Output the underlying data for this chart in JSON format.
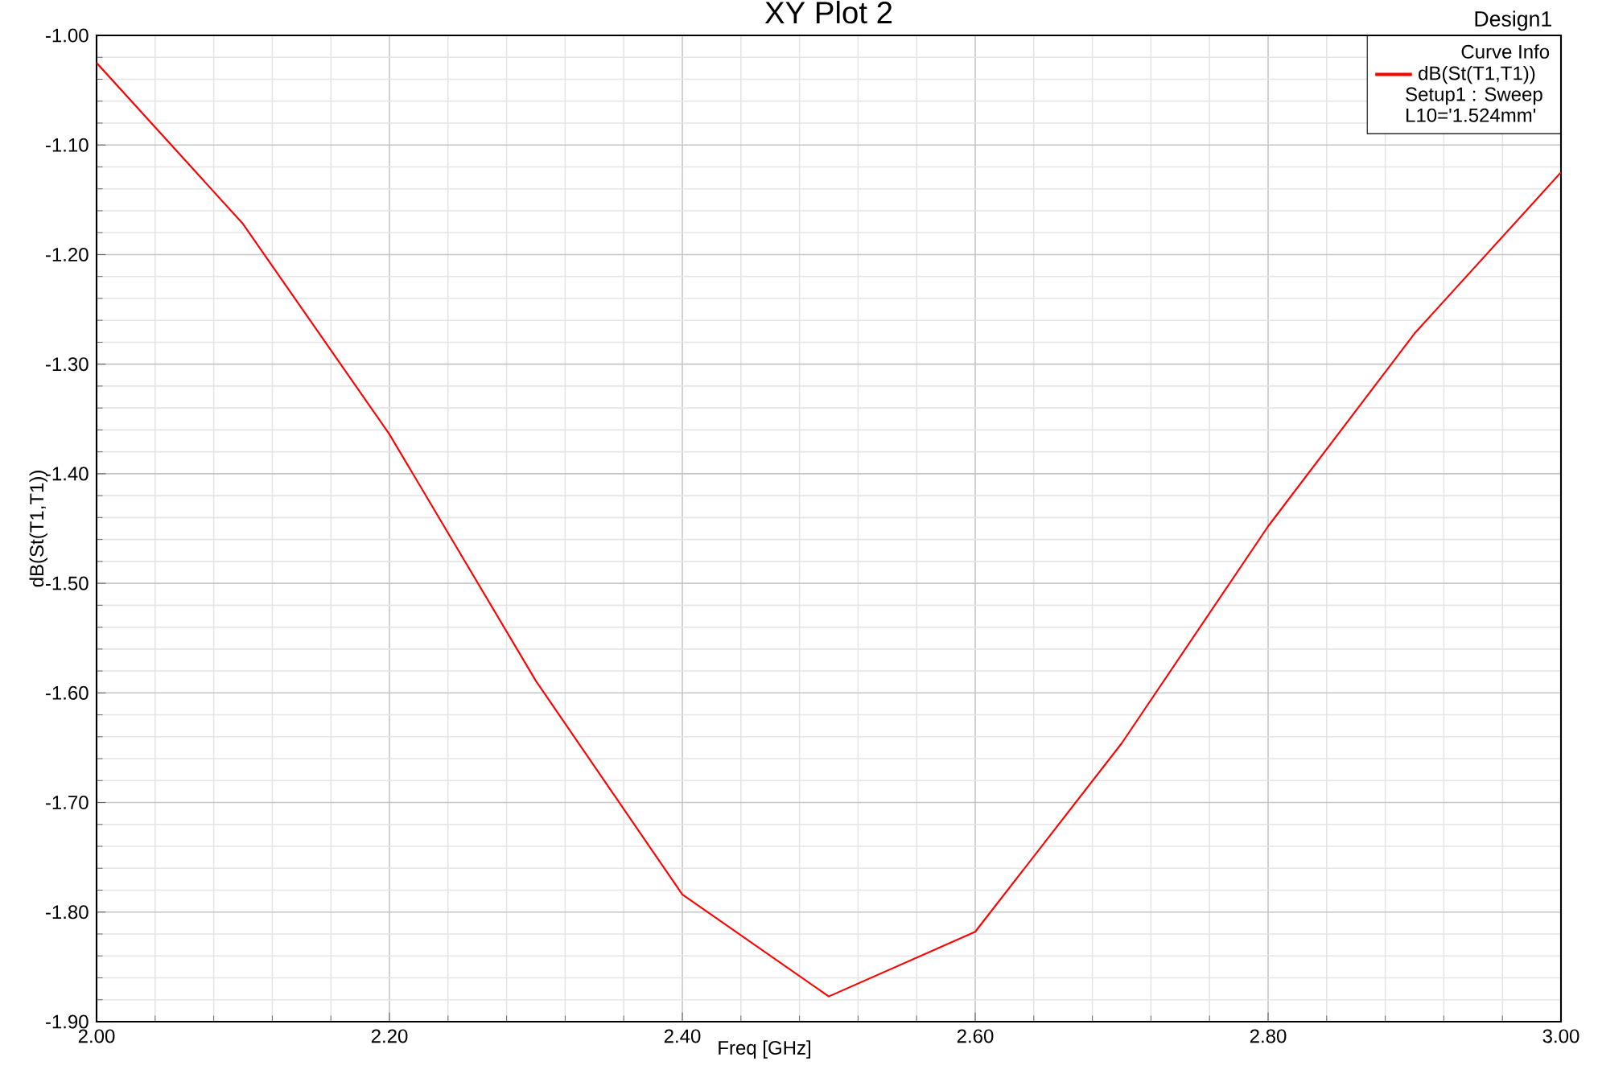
{
  "chart_data": {
    "type": "line",
    "title": "XY Plot 2",
    "xlabel": "Freq [GHz]",
    "ylabel": "dB(St(T1,T1))",
    "legend_title": "Curve Info",
    "x": [
      2.0,
      2.1,
      2.2,
      2.3,
      2.4,
      2.5,
      2.6,
      2.7,
      2.8,
      2.9,
      3.0
    ],
    "series": [
      {
        "name": "dB(St(T1,T1))",
        "color": "#ff0000",
        "values": [
          -1.025,
          -1.172,
          -1.364,
          -1.589,
          -1.784,
          -1.877,
          -1.818,
          -1.646,
          -1.448,
          -1.272,
          -1.125
        ]
      }
    ],
    "xlim": [
      2.0,
      3.0
    ],
    "xticks": [
      {
        "value": 2.0,
        "label": "2.00"
      },
      {
        "value": 2.2,
        "label": "2.20"
      },
      {
        "value": 2.4,
        "label": "2.40"
      },
      {
        "value": 2.6,
        "label": "2.60"
      },
      {
        "value": 2.8,
        "label": "2.80"
      },
      {
        "value": 3.0,
        "label": "3.00"
      }
    ],
    "ylim": [
      -1.9,
      -1.0
    ],
    "yticks": [
      {
        "value": -1.9,
        "label": "-1.90"
      },
      {
        "value": -1.8,
        "label": "-1.80"
      },
      {
        "value": -1.7,
        "label": "-1.70"
      },
      {
        "value": -1.6,
        "label": "-1.60"
      },
      {
        "value": -1.5,
        "label": "-1.50"
      },
      {
        "value": -1.4,
        "label": "-1.40"
      },
      {
        "value": -1.3,
        "label": "-1.30"
      },
      {
        "value": -1.2,
        "label": "-1.20"
      },
      {
        "value": -1.1,
        "label": "-1.10"
      },
      {
        "value": -1.0,
        "label": "-1.00"
      }
    ],
    "grid": true,
    "legend": "top right",
    "line_style": "solid",
    "annotations": [
      "Design1",
      "Setup1 : Sweep",
      "L10='1.524mm'"
    ]
  }
}
